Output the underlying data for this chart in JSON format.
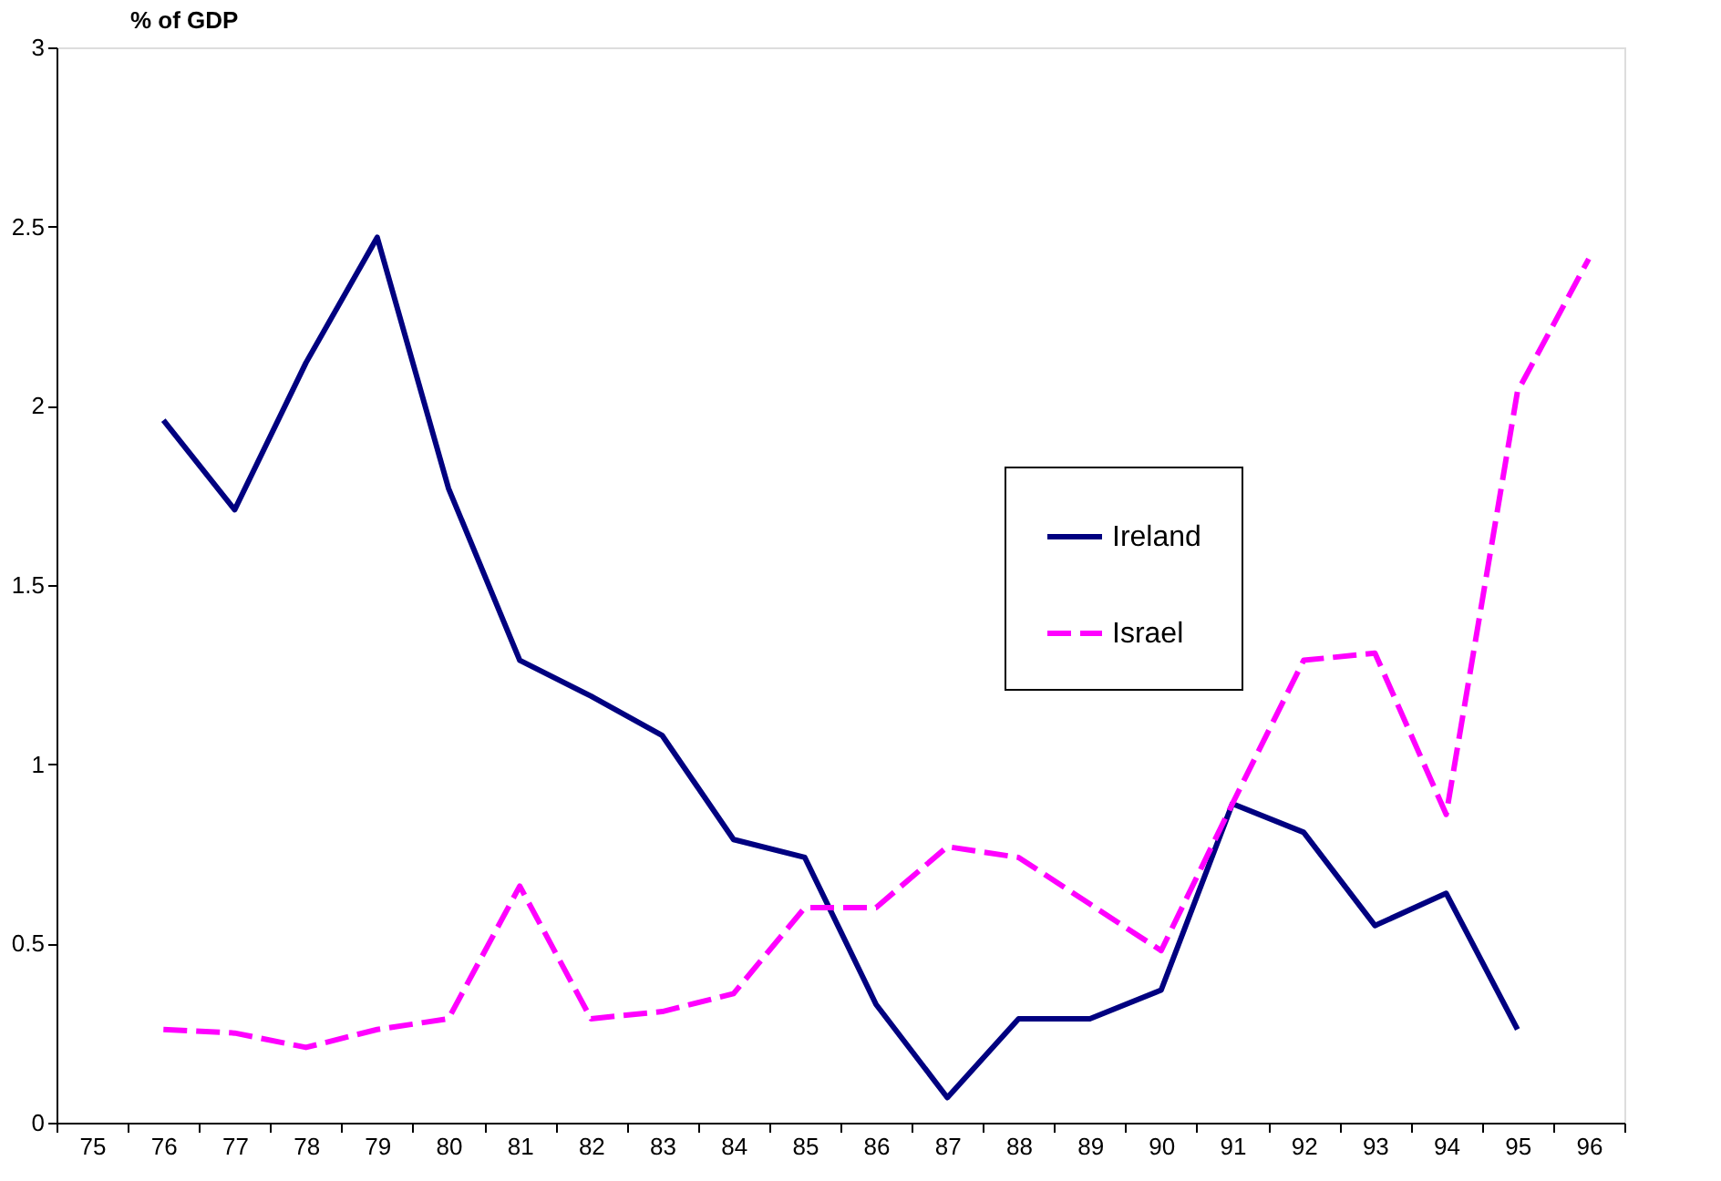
{
  "chart_data": {
    "type": "line",
    "ylabel": "% of GDP",
    "categories": [
      "75",
      "76",
      "77",
      "78",
      "79",
      "80",
      "81",
      "82",
      "83",
      "84",
      "85",
      "86",
      "87",
      "88",
      "89",
      "90",
      "91",
      "92",
      "93",
      "94",
      "95",
      "96"
    ],
    "series": [
      {
        "name": "Ireland",
        "color": "#000080",
        "line_style": "solid",
        "values": [
          null,
          1.96,
          1.71,
          2.12,
          2.47,
          1.77,
          1.29,
          1.19,
          1.08,
          0.79,
          0.74,
          0.33,
          0.07,
          0.29,
          0.29,
          0.37,
          0.89,
          0.81,
          0.55,
          0.64,
          0.26,
          null
        ]
      },
      {
        "name": "Israel",
        "color": "#ff00ff",
        "line_style": "dashed",
        "values": [
          null,
          0.26,
          0.25,
          0.21,
          0.26,
          0.29,
          0.66,
          0.29,
          0.31,
          0.36,
          0.6,
          0.6,
          0.77,
          0.74,
          0.61,
          0.48,
          0.89,
          1.29,
          1.31,
          0.86,
          2.04,
          2.41
        ]
      }
    ],
    "ylim": [
      0,
      3
    ],
    "yticks": [
      0,
      0.5,
      1,
      1.5,
      2,
      2.5,
      3
    ],
    "grid": false,
    "legend": "right",
    "marker": "none"
  }
}
